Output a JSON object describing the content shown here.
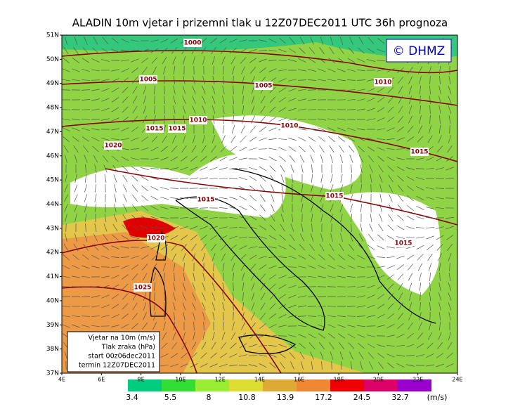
{
  "header": {
    "title": "ALADIN 10m vjetar i prizemni tlak u 12Z07DEC2011 UTC 36h prognoza",
    "logo": "© DHMZ"
  },
  "map": {
    "lat_labels": [
      "51N",
      "50N",
      "49N",
      "48N",
      "47N",
      "46N",
      "45N",
      "44N",
      "43N",
      "42N",
      "41N",
      "40N",
      "39N",
      "38N",
      "37N"
    ],
    "lon_labels": [
      "4E",
      "6E",
      "8E",
      "10E",
      "12E",
      "14E",
      "16E",
      "18E",
      "20E",
      "22E",
      "24E"
    ],
    "isobar_labels": [
      "1000",
      "1005",
      "1005",
      "1010",
      "1010",
      "1010",
      "1015",
      "1015",
      "1020",
      "1015",
      "1015",
      "1015",
      "1015",
      "1020",
      "1025"
    ]
  },
  "info_box": {
    "lines": [
      "Vjetar na 10m (m/s)",
      "Tlak zraka (hPa)",
      "start 00z06dec2011",
      "termin 12Z07DEC2011"
    ]
  },
  "legend": {
    "colors": [
      "#00cc80",
      "#33dd33",
      "#99ee33",
      "#dddd33",
      "#ddaa33",
      "#ee8833",
      "#ee0000",
      "#dd0066",
      "#9900cc"
    ],
    "labels": [
      "3.4",
      "5.5",
      "8",
      "10.8",
      "13.9",
      "17.2",
      "24.5",
      "32.7"
    ],
    "unit": "(m/s)"
  }
}
